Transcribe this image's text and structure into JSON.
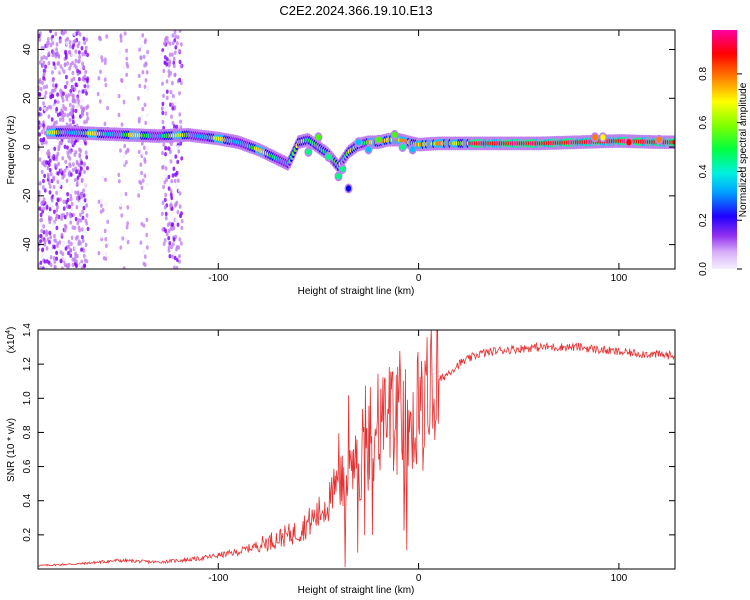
{
  "title": "C2E2.2024.366.19.10.E13",
  "chart_data": [
    {
      "type": "heatmap",
      "name": "spectrogram",
      "xlabel": "Height of straight line (km)",
      "ylabel": "Frequency (Hz)",
      "xlim": [
        -190,
        128
      ],
      "ylim": [
        -50,
        48
      ],
      "xticks": [
        -100,
        0,
        100
      ],
      "yticks": [
        -40,
        -20,
        0,
        20,
        40
      ],
      "colorbar": {
        "label": "Normalized spectral amplitude",
        "range": [
          0,
          0.98
        ],
        "ticks": [
          0.0,
          0.2,
          0.4,
          0.6,
          0.8
        ],
        "tick_labels": [
          "0.0",
          "0.2",
          "0.4",
          "0.6",
          "0.8"
        ],
        "colors": [
          "#f0f0ff",
          "#c080f0",
          "#8000ff",
          "#0000ff",
          "#00c0ff",
          "#00ff80",
          "#40ff00",
          "#ffff00",
          "#ff8000",
          "#ff0000",
          "#ff00a0"
        ]
      },
      "ridge": {
        "x": [
          -185,
          -175,
          -160,
          -145,
          -130,
          -115,
          -100,
          -90,
          -80,
          -75,
          -70,
          -65,
          -60,
          -55,
          -50,
          -45,
          -40,
          -35,
          -30,
          -25,
          -20,
          -15,
          -10,
          -5,
          0,
          10,
          20,
          40,
          60,
          80,
          100,
          120,
          128
        ],
        "freq": [
          6,
          6,
          5.5,
          5,
          4.5,
          5,
          3.5,
          2,
          -1,
          -3,
          -5,
          -7,
          2,
          3,
          0,
          -3,
          -8,
          -2,
          1,
          2,
          2,
          3,
          3,
          2,
          1,
          1.5,
          1.5,
          1.5,
          1.5,
          2,
          2.5,
          2,
          2
        ]
      }
    },
    {
      "type": "line",
      "name": "snr",
      "xlabel": "Height of straight line (km)",
      "ylabel": "SNR (10 * v/v)",
      "y_multiplier_label": "(x10",
      "y_multiplier_exp": "4",
      "xlim": [
        -190,
        128
      ],
      "ylim": [
        0,
        1.4
      ],
      "xticks": [
        -100,
        0,
        100
      ],
      "yticks": [
        0.2,
        0.4,
        0.6,
        0.8,
        1.0,
        1.2,
        1.4
      ],
      "ytick_labels": [
        "0.2",
        "0.4",
        "0.6",
        "0.8",
        "1.0",
        "1.2",
        "1.4"
      ],
      "color": "#e83030",
      "envelope": {
        "x": [
          -190,
          -170,
          -150,
          -130,
          -110,
          -90,
          -80,
          -70,
          -60,
          -50,
          -45,
          -40,
          -35,
          -30,
          -25,
          -20,
          -15,
          -10,
          -5,
          0,
          5,
          10,
          20,
          30,
          40,
          60,
          80,
          100,
          128
        ],
        "y": [
          0.02,
          0.03,
          0.05,
          0.04,
          0.06,
          0.1,
          0.14,
          0.18,
          0.22,
          0.32,
          0.4,
          0.5,
          0.55,
          0.65,
          0.75,
          0.82,
          0.85,
          0.85,
          0.88,
          0.92,
          1.0,
          1.1,
          1.2,
          1.26,
          1.28,
          1.3,
          1.3,
          1.27,
          1.25
        ]
      }
    }
  ]
}
